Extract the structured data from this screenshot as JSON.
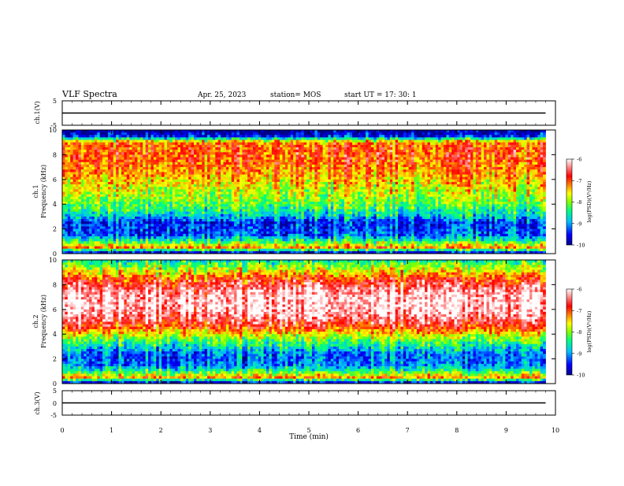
{
  "header": {
    "title": "VLF Spectra",
    "date": "Apr. 25, 2023",
    "station": "station= MOS",
    "start": "start UT =   17: 30: 1"
  },
  "colors": {
    "colormap": [
      "#00008b",
      "#0000ff",
      "#00bfff",
      "#00ff80",
      "#80ff00",
      "#ffff00",
      "#ff8000",
      "#ff0000",
      "#ffffff"
    ],
    "trace": "#000000"
  },
  "chart_data": [
    {
      "type": "line",
      "ylabel": "ch.1(V)",
      "ylim": [
        -5,
        5
      ],
      "yticks": [
        "5",
        "-5"
      ],
      "x": [
        0,
        1,
        2,
        3,
        4,
        5,
        6,
        7,
        8,
        9,
        9.8
      ],
      "values": [
        0,
        0,
        0,
        0,
        0,
        0,
        0,
        0,
        0,
        0,
        0
      ]
    },
    {
      "type": "heatmap",
      "ylabel": "ch.1\nFrequency (kHz)",
      "ylim": [
        0,
        10
      ],
      "yticks": [
        "0",
        "2",
        "4",
        "6",
        "8",
        "10"
      ],
      "xlim": [
        0,
        10
      ],
      "x_extent": [
        0,
        9.8
      ],
      "profile_freq_khz": [
        0,
        0.5,
        1,
        1.5,
        2,
        2.5,
        3,
        3.5,
        4,
        4.5,
        5,
        5.5,
        6,
        6.5,
        7,
        7.5,
        8,
        8.5,
        9,
        9.5,
        10
      ],
      "profile_log_psd": [
        -10,
        -7.2,
        -8.3,
        -9.2,
        -9.3,
        -9.4,
        -8.8,
        -8.4,
        -8.1,
        -7.9,
        -7.7,
        -7.6,
        -7.4,
        -7.2,
        -7.1,
        -7.0,
        -6.95,
        -7.0,
        -7.1,
        -9.5,
        -10
      ],
      "colorbar": {
        "label": "log(PSD)(V²/Hz)",
        "ticks": [
          "-6",
          "-7",
          "-8",
          "-9",
          "-10"
        ],
        "range": [
          -10,
          -6
        ]
      }
    },
    {
      "type": "heatmap",
      "ylabel": "ch.2\nFrequency (kHz)",
      "ylim": [
        0,
        10
      ],
      "yticks": [
        "0",
        "2",
        "4",
        "6",
        "8",
        "10"
      ],
      "xlim": [
        0,
        10
      ],
      "x_extent": [
        0,
        9.8
      ],
      "profile_freq_khz": [
        0,
        0.5,
        1,
        1.5,
        2,
        2.5,
        3,
        3.5,
        4,
        4.5,
        5,
        5.5,
        6,
        6.5,
        7,
        7.5,
        8,
        8.5,
        9,
        9.5,
        10
      ],
      "profile_log_psd": [
        -10,
        -7.3,
        -8.4,
        -9.1,
        -9.2,
        -9.1,
        -8.6,
        -8.2,
        -7.6,
        -7.0,
        -6.6,
        -6.3,
        -6.15,
        -6.1,
        -6.15,
        -6.3,
        -6.6,
        -7.0,
        -7.5,
        -8.0,
        -8.6
      ],
      "colorbar": {
        "label": "log(PSD)(V²/Hz)",
        "ticks": [
          "-6",
          "-7",
          "-8",
          "-9",
          "-10"
        ],
        "range": [
          -10,
          -6
        ]
      }
    },
    {
      "type": "line",
      "ylabel": "ch.3(V)",
      "ylim": [
        -5,
        5
      ],
      "yticks": [
        "5",
        "0",
        "-5"
      ],
      "x": [
        0,
        1,
        2,
        3,
        4,
        5,
        6,
        7,
        8,
        9,
        9.8
      ],
      "values": [
        0,
        0,
        0,
        0,
        0,
        0,
        0,
        0,
        0,
        0,
        0
      ]
    }
  ],
  "xaxis": {
    "label": "Time (min)",
    "ticks": [
      "0",
      "1",
      "2",
      "3",
      "4",
      "5",
      "6",
      "7",
      "8",
      "9",
      "10"
    ],
    "xlim": [
      0,
      10
    ]
  }
}
